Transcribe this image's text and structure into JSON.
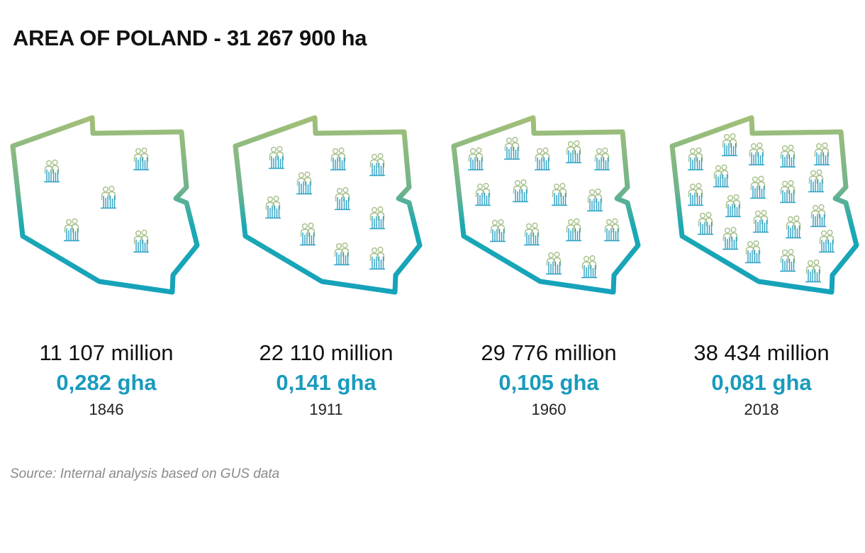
{
  "colors": {
    "outline_top": "#a3bf78",
    "outline_bottom": "#16a2bb",
    "accent": "#1a9bbd",
    "person_green": "#a6c08a",
    "person_blue": "#2aa0c2"
  },
  "chart_data": {
    "type": "pictogram",
    "title": "AREA OF POLAND - 31 267 900 ha",
    "icon": "people-icon",
    "panels": [
      {
        "population": "11 107 million",
        "per_capita": "0,282 gha",
        "year": "1846",
        "icons": 5
      },
      {
        "population": "22 110 million",
        "per_capita": "0,141 gha",
        "year": "1911",
        "icons": 10
      },
      {
        "population": "29 776 million",
        "per_capita": "0,105 gha",
        "year": "1960",
        "icons": 15
      },
      {
        "population": "38 434 million",
        "per_capita": "0,081 gha",
        "year": "2018",
        "icons": 20
      }
    ]
  },
  "source": "Source: Internal analysis based on GUS data"
}
